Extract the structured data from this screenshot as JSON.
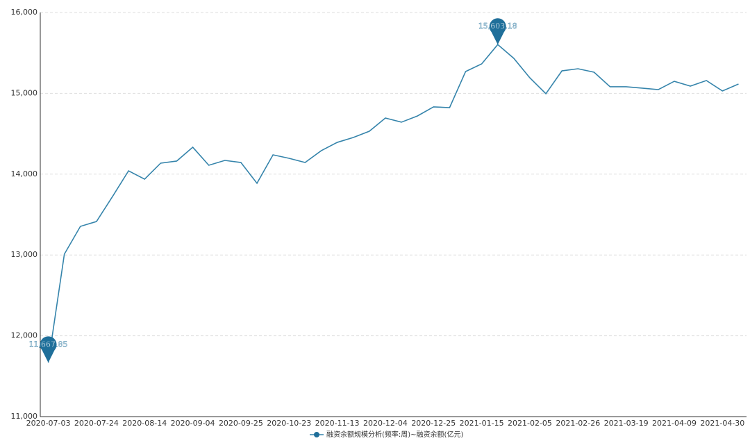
{
  "chart_data": {
    "type": "line",
    "categories": [
      "2020-07-03",
      null,
      null,
      "2020-07-24",
      null,
      null,
      "2020-08-14",
      null,
      null,
      "2020-09-04",
      null,
      null,
      "2020-09-25",
      null,
      null,
      "2020-10-23",
      null,
      null,
      "2020-11-13",
      null,
      null,
      "2020-12-04",
      null,
      null,
      "2020-12-25",
      null,
      null,
      "2021-01-15",
      null,
      null,
      "2021-02-05",
      null,
      null,
      "2021-02-26",
      null,
      null,
      "2021-03-19",
      null,
      null,
      "2021-04-09",
      null,
      null,
      "2021-04-30",
      null
    ],
    "series": [
      {
        "name": "融资余额规模分析(频率:周)~融资余额(亿元)",
        "color": "#3584ab",
        "values": [
          11667.85,
          13010,
          13354,
          13414,
          13723,
          14041,
          13938,
          14136,
          14162,
          14333,
          14110,
          14170,
          14144,
          13887,
          14239,
          14196,
          14144,
          14290,
          14393,
          14454,
          14531,
          14694,
          14643,
          14720,
          14832,
          14823,
          15270,
          15364,
          15603.18,
          15433,
          15192,
          14995,
          15278,
          15304,
          15261,
          15081,
          15081,
          15064,
          15046,
          15149,
          15089,
          15158,
          15029,
          15115
        ],
        "value_labels": [
          "11,667.85",
          null,
          null,
          null,
          null,
          null,
          null,
          null,
          null,
          null,
          null,
          null,
          null,
          null,
          null,
          null,
          null,
          null,
          null,
          null,
          null,
          null,
          null,
          null,
          null,
          null,
          null,
          null,
          "15,603.18",
          null,
          null,
          null,
          null,
          null,
          null,
          null,
          null,
          null,
          null,
          null,
          null,
          null,
          null,
          null
        ]
      }
    ],
    "ylim": [
      11000,
      16000
    ],
    "yticks": [
      {
        "value": 11000,
        "label": "11,000"
      },
      {
        "value": 12000,
        "label": "12,000"
      },
      {
        "value": 13000,
        "label": "13,000"
      },
      {
        "value": 14000,
        "label": "14,000"
      },
      {
        "value": 15000,
        "label": "15,000"
      },
      {
        "value": 16000,
        "label": "16,000"
      }
    ],
    "grid": true,
    "legend": "bottom"
  }
}
